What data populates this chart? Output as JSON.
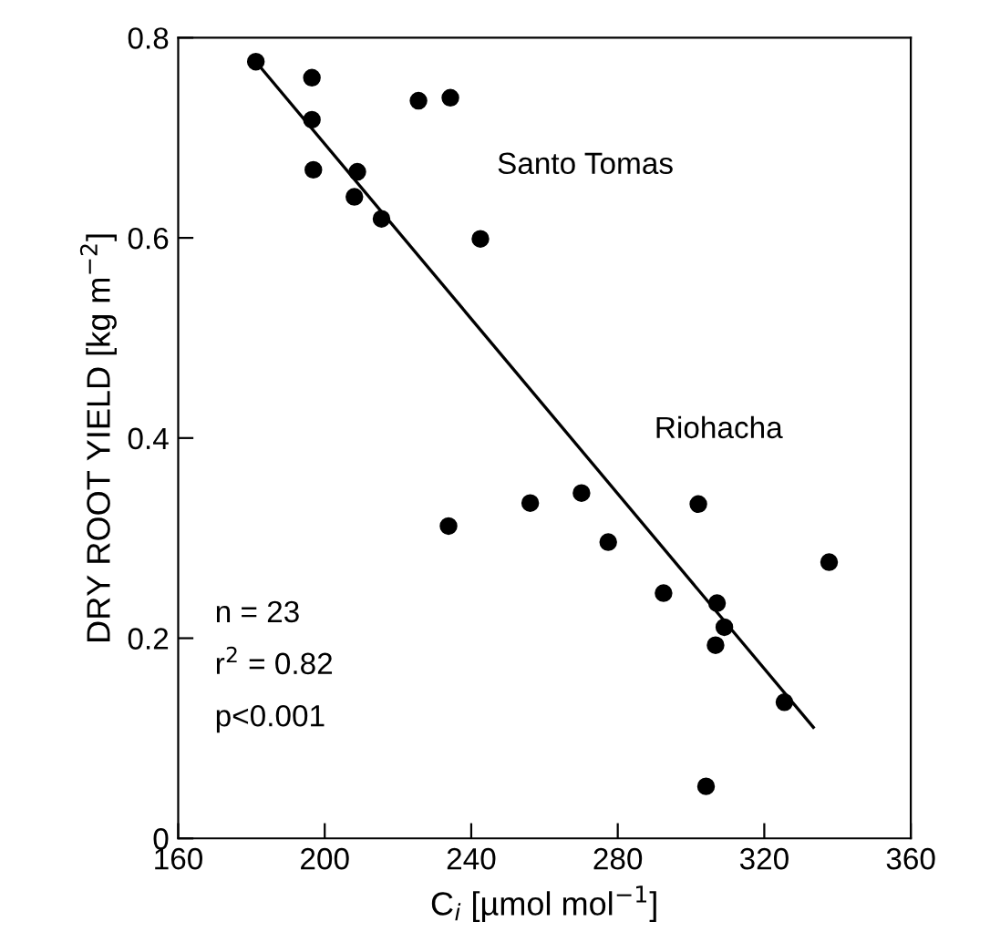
{
  "chart_data": {
    "type": "scatter",
    "xlabel": "C$_{i}$ [µmol mol$^{−1}$]",
    "ylabel": "DRY ROOT YIELD [kg m$^{−2}$]",
    "xlim": [
      160,
      360
    ],
    "ylim": [
      0,
      0.8
    ],
    "xticks": [
      160,
      200,
      240,
      280,
      320,
      360
    ],
    "yticks": [
      0,
      0.2,
      0.4,
      0.6,
      0.8
    ],
    "grid": false,
    "legend": false,
    "series": [
      {
        "marker": "circle",
        "color": "#000000",
        "x": [
          181.2,
          196.5,
          196.5,
          196.9,
          208.9,
          208.1,
          215.5,
          225.6,
          234.3,
          242.5,
          233.8,
          256.1,
          270.1,
          277.4,
          302.0,
          337.7,
          292.5,
          307.1,
          309.1,
          306.7,
          325.5,
          304.1
        ],
        "values": [
          0.776,
          0.76,
          0.718,
          0.668,
          0.666,
          0.641,
          0.619,
          0.737,
          0.74,
          0.599,
          0.312,
          0.335,
          0.345,
          0.296,
          0.334,
          0.276,
          0.245,
          0.235,
          0.211,
          0.193,
          0.136,
          0.052
        ]
      },
      {
        "type": "line",
        "color": "#000000",
        "x": [
          181.2,
          333.4
        ],
        "values": [
          0.776,
          0.111
        ]
      }
    ],
    "annotations": [
      "Santo Tomas",
      "Riohacha",
      "n = 23",
      "r$^{2}$ = 0.82",
      "p<0.001"
    ]
  }
}
